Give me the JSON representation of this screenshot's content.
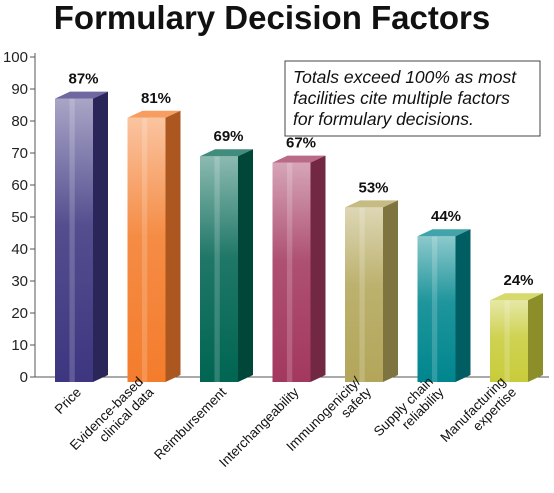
{
  "chart_data": {
    "type": "bar",
    "title": "Formulary Decision Factors",
    "categories": [
      [
        "Price"
      ],
      [
        "Evidence-based",
        "clinical data"
      ],
      [
        "Reimbursement"
      ],
      [
        "Interchangeability"
      ],
      [
        "Immunogenicity/",
        "safety"
      ],
      [
        "Supply chain",
        "reliability"
      ],
      [
        "Manufacturing",
        "expertise"
      ]
    ],
    "values": [
      87,
      81,
      69,
      67,
      53,
      44,
      24
    ],
    "value_labels": [
      "87%",
      "81%",
      "69%",
      "67%",
      "53%",
      "44%",
      "24%"
    ],
    "colors": [
      "#3d3680",
      "#f47c2c",
      "#006552",
      "#a3385e",
      "#b3a65a",
      "#00868e",
      "#c8cc3a"
    ],
    "ylim": [
      0,
      100
    ],
    "yticks": [
      0,
      10,
      20,
      30,
      40,
      50,
      60,
      70,
      80,
      90,
      100
    ],
    "grid": false,
    "style": "3d-bars",
    "annotation": [
      "Totals exceed 100% as most",
      "facilities cite multiple factors",
      "for formulary decisions."
    ]
  }
}
